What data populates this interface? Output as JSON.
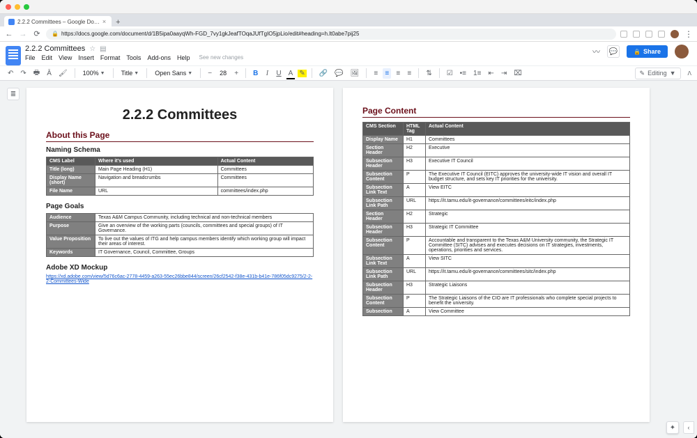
{
  "browser": {
    "tab_title": "2.2.2 Committees – Google Do…",
    "url": "https://docs.google.com/document/d/1B5ipa0aayqWh-FGD_7vy1gkJeafTOqaJUfTgIO5jpLio/edit#heading=h.lt0abe7pij25"
  },
  "doc": {
    "title": "2.2.2 Committees",
    "menus": [
      "File",
      "Edit",
      "View",
      "Insert",
      "Format",
      "Tools",
      "Add-ons",
      "Help"
    ],
    "see_changes": "See new changes",
    "share": "Share",
    "toolbar": {
      "zoom": "100%",
      "style": "Title",
      "font": "Open Sans",
      "size": "28",
      "editing": "Editing"
    }
  },
  "page1": {
    "h1": "2.2.2 Committees",
    "about": "About this Page",
    "naming_header": "Naming Schema",
    "naming_cols": [
      "CMS Label",
      "Where it's used",
      "Actual Content"
    ],
    "naming_rows": [
      [
        "Title (long)",
        "Main Page Heading (H1)",
        "Committees"
      ],
      [
        "Display Name (short)",
        "Navigation and breadcrumbs",
        "Committees"
      ],
      [
        "File Name",
        "URL",
        "committees/index.php"
      ]
    ],
    "goals_header": "Page Goals",
    "goals_rows": [
      [
        "Audience",
        "Texas A&M Campus Community, including technical and non-technical members"
      ],
      [
        "Purpose",
        "Give an overview of the working parts (councils, committees and special groups) of IT Governance."
      ],
      [
        "Value Proposition",
        "To live out the values of ITG and help campus members identify which working group will impact their areas of interest."
      ],
      [
        "Keywords",
        "IT Governance, Council, Committee, Groups"
      ]
    ],
    "xd_header": "Adobe XD Mockup",
    "xd_link": "https://xd.adobe.com/view/5d76c6ac-2778-4459-a263-55ec26bbe844/screen/26cf2542-f38e-431b-b41e-786f05dc9275/2-2-2-Committees-Wide"
  },
  "page2": {
    "header": "Page Content",
    "cols": [
      "CMS Section",
      "HTML Tag",
      "Actual Content"
    ],
    "rows": [
      [
        "Display Name",
        "H1",
        "Committees"
      ],
      [
        "Section Header",
        "H2",
        "Executive"
      ],
      [
        "Subsection Header",
        "H3",
        "Executive IT Council"
      ],
      [
        "Subsection Content",
        "P",
        "The Executive IT Council (EITC) approves the university-wide IT vision and overall IT budget structure, and sets key IT priorities for the university."
      ],
      [
        "Subsection Link Text",
        "A",
        "View EITC"
      ],
      [
        "Subsection Link Path",
        "URL",
        "https://it.tamu.edu/it-governance/committees/eitc/index.php"
      ],
      [
        "Section Header",
        "H2",
        "Strategic"
      ],
      [
        "Subsection Header",
        "H3",
        "Strategic IT Committee"
      ],
      [
        "Subsection Content",
        "P",
        "Accountable and transparent to the Texas A&M University community, the Strategic IT Committee (SITC) advises and executes decisions on IT strategies, investments, operations, priorities and services."
      ],
      [
        "Subsection Link Text",
        "A",
        "View SITC"
      ],
      [
        "Subsection Link Path",
        "URL",
        "https://it.tamu.edu/it-governance/committees/sitc/index.php"
      ],
      [
        "Subsection Header",
        "H3",
        "Strategic Liaisons"
      ],
      [
        "Subsection Content",
        "P",
        "The Strategic Liaisons of the CIO are IT professionals who complete special projects to benefit the university."
      ],
      [
        "Subsection",
        "A",
        "View Committee"
      ]
    ]
  }
}
